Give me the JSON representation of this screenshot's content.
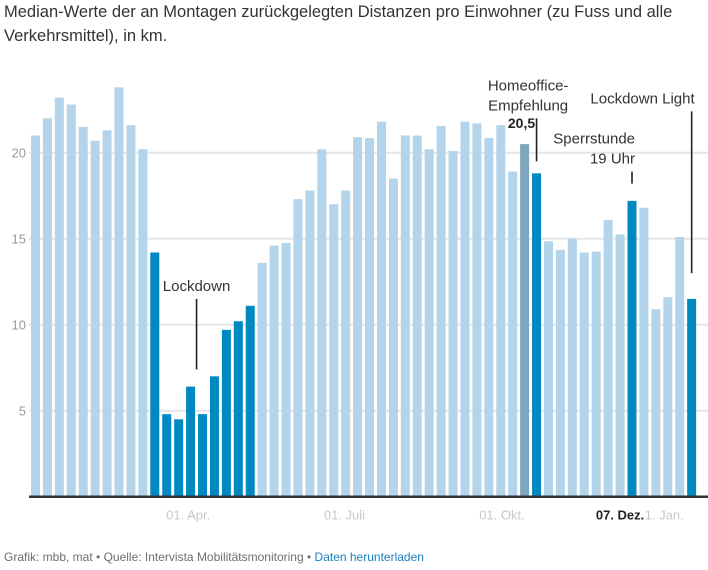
{
  "title": "Median-Werte der an Montagen zurückgelegten Distanzen pro Einwohner (zu Fuss und alle Verkehrsmittel), in km.",
  "footer": {
    "credit": "Grafik: mbb, mat",
    "separator": " • ",
    "source": "Quelle: Intervista Mobilitätsmonitoring",
    "download_link": "Daten herunterladen"
  },
  "colors": {
    "normal": "#b3d4eb",
    "highlight": "#0089c0",
    "selected": "#7fa6bf",
    "grid": "#e6e6e6",
    "axis": "#333333",
    "tick_label": "#c8c8c8",
    "y_label": "#999999"
  },
  "chart_data": {
    "type": "bar",
    "title": "Median-Werte der an Montagen zurückgelegten Distanzen pro Einwohner (zu Fuss und alle Verkehrsmittel), in km.",
    "xlabel": "",
    "ylabel": "km",
    "ylim": [
      0,
      24.5
    ],
    "yticks": [
      5,
      10,
      15,
      20
    ],
    "grid": true,
    "x_tick_labels": [
      {
        "label": "01. Apr.",
        "bar_index": 12.8,
        "bold": false
      },
      {
        "label": "01. Juli",
        "bar_index": 25.9,
        "bold": false
      },
      {
        "label": "01. Okt.",
        "bar_index": 39.1,
        "bold": false
      },
      {
        "label": "07. Dez.",
        "bar_index": 49,
        "bold": true
      },
      {
        "label": "01. Jan.",
        "bar_index": 52.4,
        "bold": false
      }
    ],
    "values": [
      21.0,
      22.0,
      23.2,
      22.8,
      21.5,
      20.7,
      21.3,
      23.8,
      21.6,
      20.2,
      14.2,
      4.8,
      4.5,
      6.4,
      4.8,
      7.0,
      9.7,
      10.2,
      11.1,
      13.6,
      14.6,
      14.75,
      17.3,
      17.8,
      20.2,
      17.0,
      17.8,
      20.9,
      20.85,
      21.8,
      18.5,
      21.0,
      21.0,
      20.2,
      21.55,
      20.1,
      21.8,
      21.7,
      20.85,
      21.6,
      18.9,
      20.5,
      18.8,
      14.85,
      14.35,
      15.0,
      14.2,
      14.25,
      16.1,
      15.25,
      17.2,
      16.8,
      10.9,
      11.6,
      15.1,
      11.5
    ],
    "bar_styles": [
      "n",
      "n",
      "n",
      "n",
      "n",
      "n",
      "n",
      "n",
      "n",
      "n",
      "h",
      "h",
      "h",
      "h",
      "h",
      "h",
      "h",
      "h",
      "h",
      "n",
      "n",
      "n",
      "n",
      "n",
      "n",
      "n",
      "n",
      "n",
      "n",
      "n",
      "n",
      "n",
      "n",
      "n",
      "n",
      "n",
      "n",
      "n",
      "n",
      "n",
      "n",
      "s",
      "h",
      "n",
      "n",
      "n",
      "n",
      "n",
      "n",
      "n",
      "h",
      "n",
      "n",
      "n",
      "n",
      "h"
    ],
    "value_label": {
      "bar_index": 41,
      "text": "20,5"
    },
    "annotations": [
      {
        "id": "lockdown",
        "lines": [
          "Lockdown"
        ],
        "bar_index": 13.5,
        "line_from": 11.5,
        "line_to": 7.4,
        "anchor": "middle"
      },
      {
        "id": "homeoffice",
        "lines": [
          "Homeoffice-",
          "Empfehlung"
        ],
        "bar_index": 42,
        "line_from": 22.0,
        "line_to": 19.5,
        "anchor": "end"
      },
      {
        "id": "sperrstunde",
        "lines": [
          "Sperrstunde",
          "19 Uhr"
        ],
        "bar_index": 50,
        "line_from": 18.9,
        "line_to": 18.2,
        "anchor": "end"
      },
      {
        "id": "lockdown-light",
        "lines": [
          "Lockdown Light"
        ],
        "bar_index": 55,
        "line_from": 22.4,
        "line_to": 13.0,
        "anchor": "end"
      }
    ]
  }
}
